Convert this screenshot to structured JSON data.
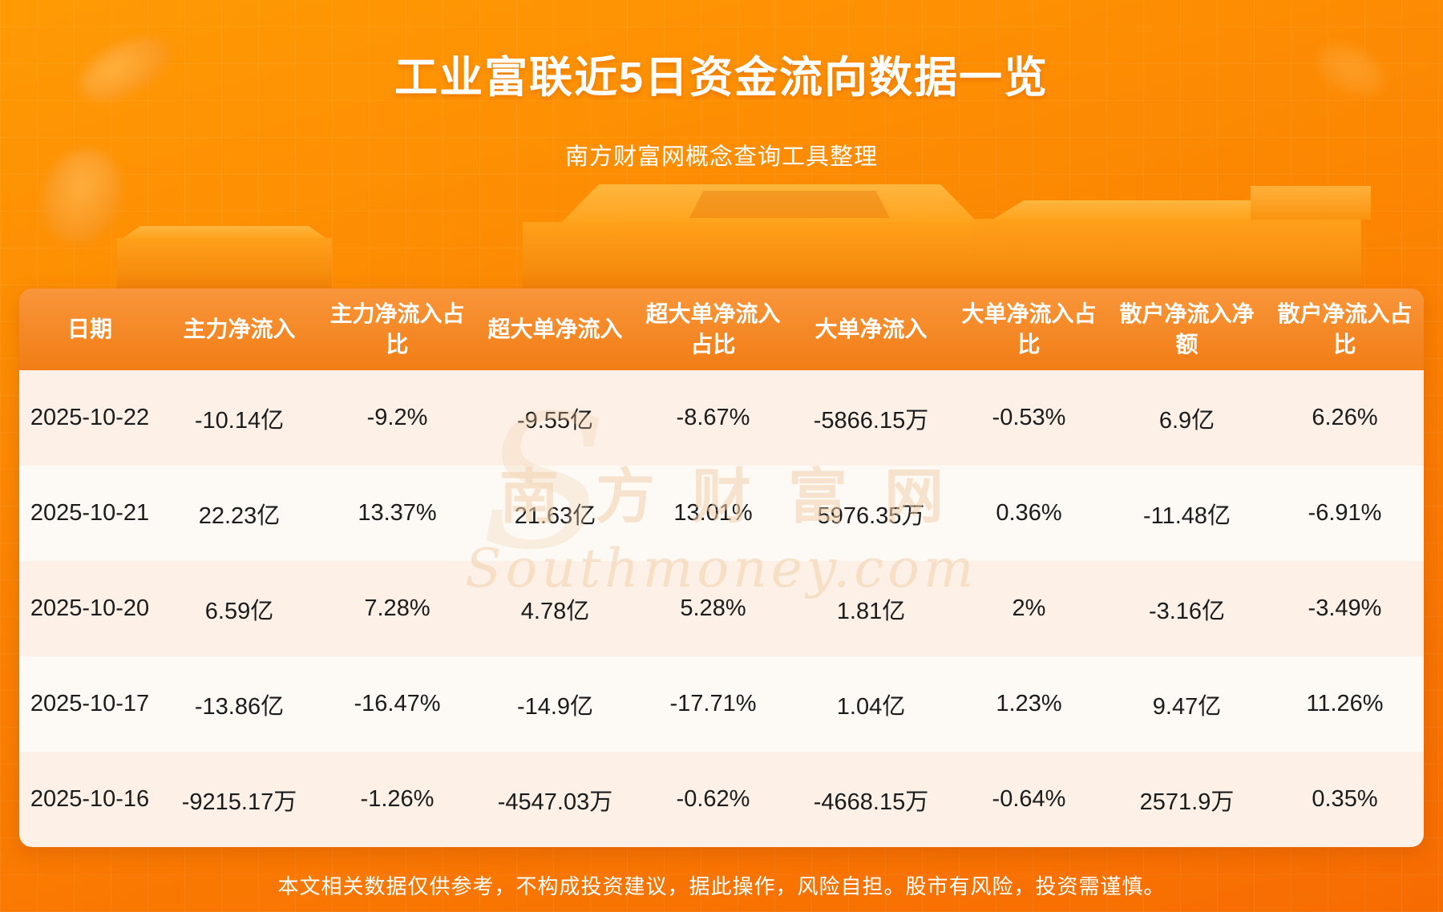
{
  "page": {
    "title": "工业富联近5日资金流向数据一览",
    "subtitle": "南方财富网概念查询工具整理",
    "footer": "本文相关数据仅供参考，不构成投资建议，据此操作，风险自担。股市有风险，投资需谨慎。",
    "watermark_cn": "南方财富网",
    "watermark_en": "Southmoney.com",
    "watermark_initial": "S"
  },
  "chart_data": {
    "type": "table",
    "title": "工业富联近5日资金流向数据一览",
    "columns": [
      "日期",
      "主力净流入",
      "主力净流入占比",
      "超大单净流入",
      "超大单净流入占比",
      "大单净流入",
      "大单净流入占比",
      "散户净流入净额",
      "散户净流入占比"
    ],
    "rows": [
      [
        "2025-10-22",
        "-10.14亿",
        "-9.2%",
        "-9.55亿",
        "-8.67%",
        "-5866.15万",
        "-0.53%",
        "6.9亿",
        "6.26%"
      ],
      [
        "2025-10-21",
        "22.23亿",
        "13.37%",
        "21.63亿",
        "13.01%",
        "5976.35万",
        "0.36%",
        "-11.48亿",
        "-6.91%"
      ],
      [
        "2025-10-20",
        "6.59亿",
        "7.28%",
        "4.78亿",
        "5.28%",
        "1.81亿",
        "2%",
        "-3.16亿",
        "-3.49%"
      ],
      [
        "2025-10-17",
        "-13.86亿",
        "-16.47%",
        "-14.9亿",
        "-17.71%",
        "1.04亿",
        "1.23%",
        "9.47亿",
        "11.26%"
      ],
      [
        "2025-10-16",
        "-9215.17万",
        "-1.26%",
        "-4547.03万",
        "-0.62%",
        "-4668.15万",
        "-0.64%",
        "2571.9万",
        "0.35%"
      ]
    ]
  },
  "colors": {
    "background_top": "#ff9a04",
    "background_bottom": "#f76c02",
    "header_bg": "#f17d15",
    "row_odd": "#fcf0e7",
    "row_even": "#fdf9f5",
    "title_text": "#ffffff",
    "table_text": "#1b1b1b",
    "watermark": "#f3d2ac"
  }
}
